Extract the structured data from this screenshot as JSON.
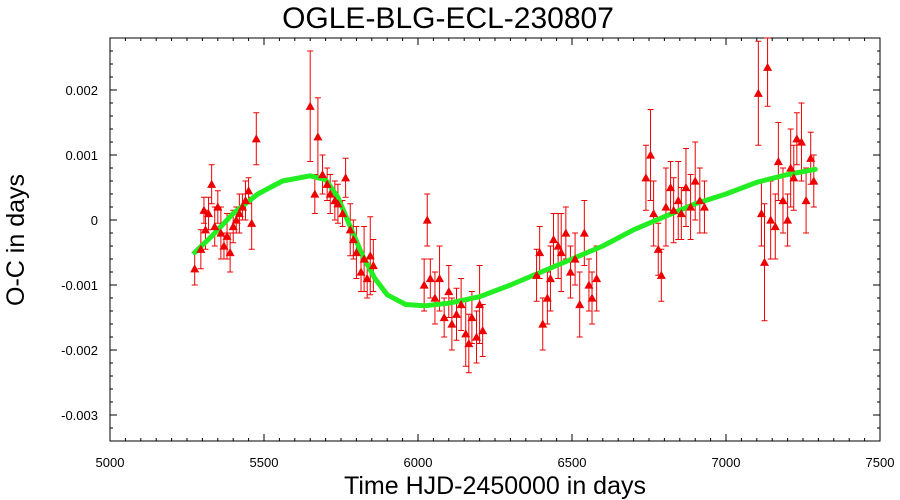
{
  "chart_data": {
    "type": "scatter",
    "title": "OGLE-BLG-ECL-230807",
    "xlabel": "Time HJD-2450000 in days",
    "ylabel": "O-C in days",
    "xlim": [
      5000,
      7500
    ],
    "ylim": [
      -0.0034,
      0.0028
    ],
    "x_ticks": [
      5000,
      5500,
      6000,
      6500,
      7000,
      7500
    ],
    "x_tick_labels": [
      "5000",
      "5500",
      "6000",
      "6500",
      "7000",
      "7500"
    ],
    "y_ticks": [
      0.002,
      0.001,
      0,
      -0.001,
      -0.002,
      -0.003
    ],
    "y_tick_labels": [
      "0.002",
      "0.001",
      "0",
      "-0.001",
      "-0.002",
      "-0.003"
    ],
    "grid": false,
    "colors": {
      "points": "#ee0000",
      "fit": "#22ee22",
      "axes": "#000000"
    },
    "series": [
      {
        "kind": "points_with_errorbars",
        "x": [
          5275,
          5295,
          5305,
          5310,
          5320,
          5330,
          5340,
          5350,
          5360,
          5370,
          5380,
          5390,
          5400,
          5410,
          5420,
          5430,
          5440,
          5450,
          5460,
          5475,
          5650,
          5665,
          5675,
          5690,
          5705,
          5715,
          5730,
          5740,
          5755,
          5765,
          5780,
          5790,
          5800,
          5815,
          5825,
          5835,
          5845,
          5855,
          6020,
          6030,
          6040,
          6055,
          6070,
          6085,
          6100,
          6110,
          6125,
          6140,
          6155,
          6165,
          6175,
          6190,
          6200,
          6210,
          6385,
          6395,
          6405,
          6420,
          6430,
          6440,
          6455,
          6465,
          6480,
          6495,
          6510,
          6525,
          6540,
          6555,
          6565,
          6580,
          6740,
          6755,
          6765,
          6780,
          6790,
          6805,
          6820,
          6830,
          6845,
          6855,
          6870,
          6885,
          6900,
          6915,
          6930,
          7105,
          7115,
          7125,
          7135,
          7145,
          7160,
          7170,
          7185,
          7200,
          7210,
          7220,
          7230,
          7245,
          7260,
          7275,
          7285
        ],
        "y": [
          -0.00075,
          -0.00045,
          0.00015,
          -0.00015,
          0.0001,
          0.00055,
          -0.0001,
          0.0002,
          -0.0002,
          -0.0004,
          -0.00025,
          -0.0005,
          -0.0001,
          0.0,
          0.0001,
          0.0002,
          0.0003,
          0.00045,
          -5e-05,
          0.00125,
          0.00175,
          0.0004,
          0.00128,
          0.0007,
          0.00055,
          0.0004,
          0.0003,
          0.00025,
          0.0001,
          0.00065,
          -0.00015,
          -0.0003,
          -0.0005,
          -0.0008,
          -0.0006,
          -0.0009,
          -0.00055,
          -0.0007,
          -0.001,
          0.0,
          -0.0009,
          -0.0012,
          -0.0009,
          -0.0015,
          -0.0011,
          -0.0016,
          -0.00145,
          -0.0013,
          -0.00175,
          -0.0019,
          -0.0015,
          -0.0018,
          -0.0013,
          -0.0017,
          -0.00085,
          -0.0005,
          -0.0016,
          -0.0012,
          -0.0009,
          -0.0003,
          -0.0004,
          -0.0005,
          -0.0002,
          -0.0008,
          -0.0006,
          -0.0013,
          -0.0002,
          -0.001,
          -0.0012,
          -0.0009,
          0.00065,
          0.001,
          0.0001,
          -0.00045,
          -0.00085,
          0.0002,
          0.0005,
          0.00015,
          0.0003,
          0.0001,
          0.0005,
          0.0002,
          0.0006,
          0.0003,
          0.0002,
          0.00195,
          0.0001,
          -0.00065,
          0.00235,
          0.0,
          -0.0001,
          0.0009,
          0.0003,
          0.0,
          0.0008,
          0.00065,
          0.00125,
          0.0012,
          0.0003,
          0.00095,
          0.0006
        ],
        "err": [
          0.00025,
          0.0003,
          0.0002,
          0.0003,
          0.00025,
          0.0003,
          0.0003,
          0.00025,
          0.0004,
          0.0002,
          0.00035,
          0.0003,
          0.00025,
          0.0002,
          0.0003,
          0.0002,
          0.0003,
          0.0002,
          0.0004,
          0.0004,
          0.00085,
          0.0003,
          0.0006,
          0.0003,
          0.00025,
          0.0003,
          0.0003,
          0.0003,
          0.0002,
          0.0003,
          0.0004,
          0.0003,
          0.0004,
          0.0003,
          0.0005,
          0.0003,
          0.0006,
          0.0004,
          0.0004,
          0.0004,
          0.0003,
          0.0004,
          0.0005,
          0.0003,
          0.0004,
          0.0004,
          0.0004,
          0.0004,
          0.0005,
          0.00045,
          0.0004,
          0.0004,
          0.0006,
          0.0004,
          0.0004,
          0.0004,
          0.0004,
          0.0004,
          0.0005,
          0.0004,
          0.0005,
          0.0006,
          0.0004,
          0.0004,
          0.0004,
          0.0005,
          0.0005,
          0.0004,
          0.0004,
          0.0005,
          0.0005,
          0.0007,
          0.0005,
          0.0004,
          0.0004,
          0.0006,
          0.0004,
          0.0005,
          0.0006,
          0.0004,
          0.0006,
          0.0005,
          0.0006,
          0.0005,
          0.0004,
          0.0008,
          0.0005,
          0.0009,
          0.0006,
          0.0006,
          0.0005,
          0.0006,
          0.0005,
          0.0004,
          0.0006,
          0.0005,
          0.0004,
          0.0006,
          0.0005,
          0.0004,
          0.0004
        ]
      },
      {
        "kind": "fit_curve",
        "x": [
          5275,
          5330,
          5400,
          5480,
          5560,
          5650,
          5700,
          5740,
          5780,
          5820,
          5860,
          5900,
          5960,
          6020,
          6100,
          6200,
          6300,
          6400,
          6500,
          6600,
          6700,
          6800,
          6900,
          7000,
          7100,
          7200,
          7290
        ],
        "y": [
          -0.0005,
          -0.00025,
          0.0001,
          0.0004,
          0.0006,
          0.00068,
          0.00062,
          0.00035,
          -0.0001,
          -0.00055,
          -0.0009,
          -0.00115,
          -0.0013,
          -0.00132,
          -0.00128,
          -0.00118,
          -0.001,
          -0.0008,
          -0.0006,
          -0.0004,
          -0.00015,
          5e-05,
          0.00025,
          0.0004,
          0.00058,
          0.0007,
          0.00078
        ]
      }
    ]
  }
}
